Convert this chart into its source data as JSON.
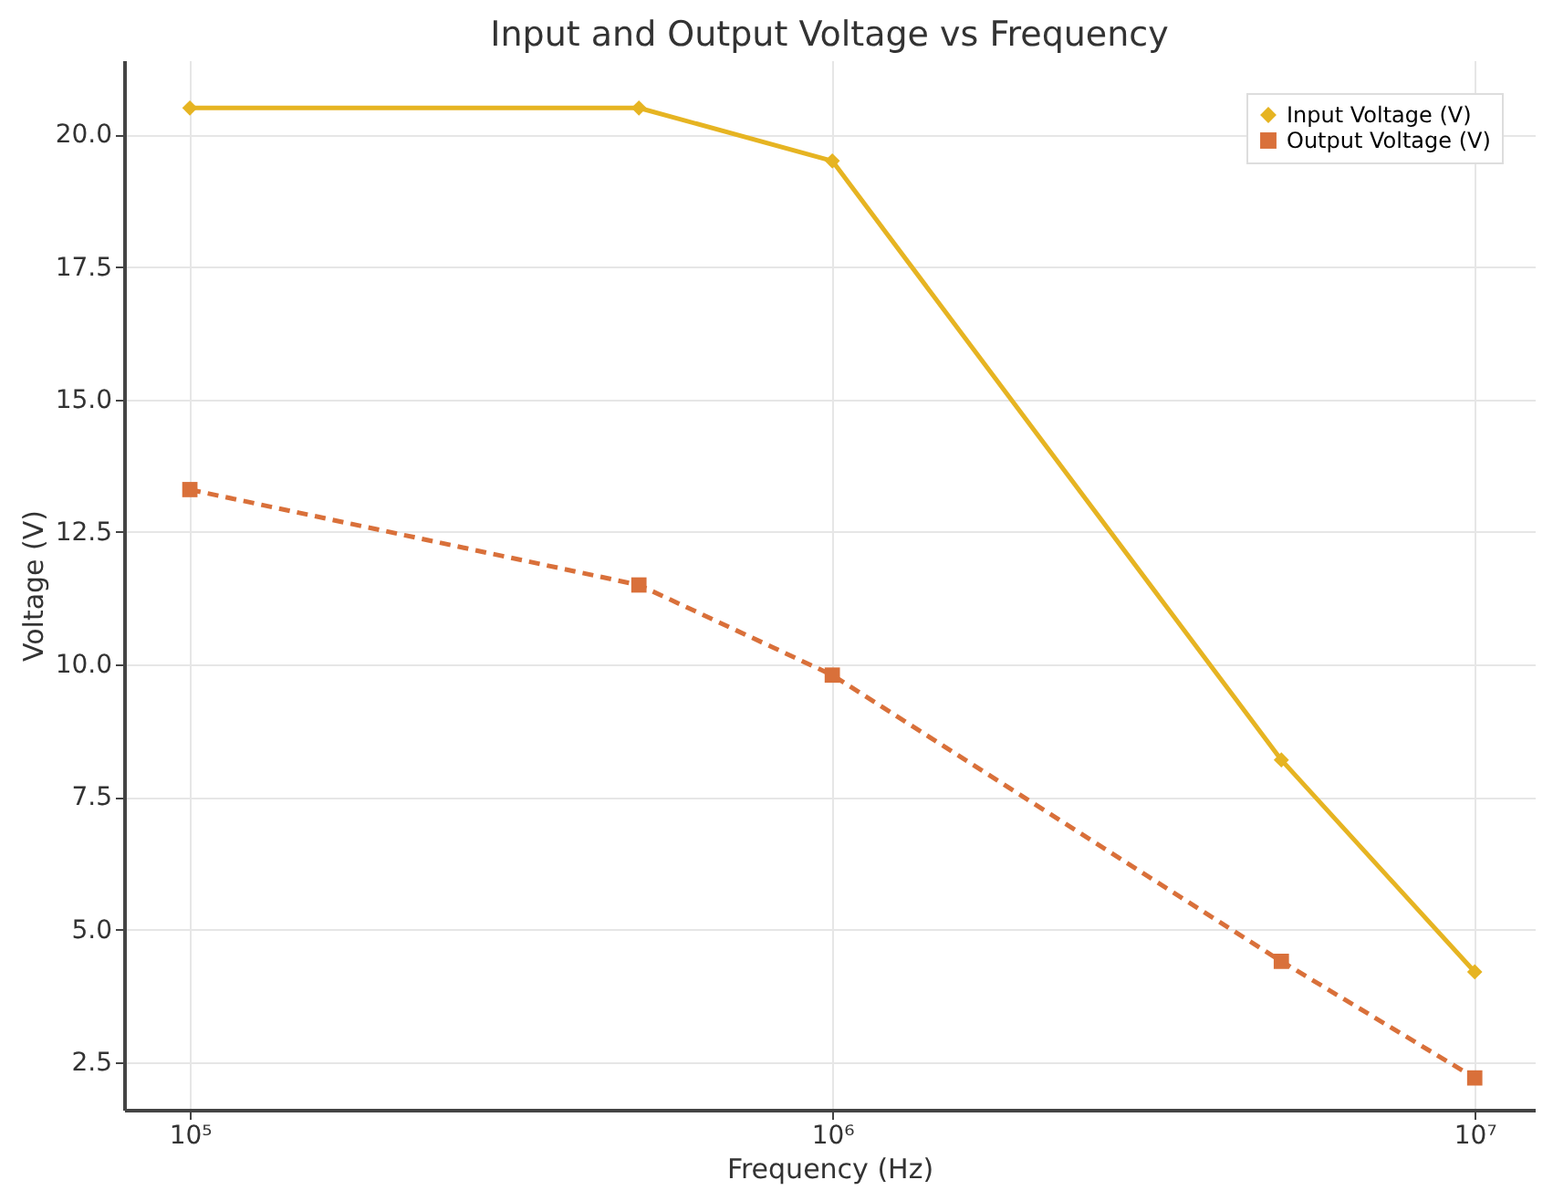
{
  "chart_data": {
    "type": "line",
    "title": "Input and Output Voltage vs Frequency",
    "xlabel": "Frequency (Hz)",
    "ylabel": "Voltage (V)",
    "x": [
      100000,
      500000,
      1000000,
      5000000,
      10000000
    ],
    "series": [
      {
        "name": "Input Voltage (V)",
        "color": "#e6b422",
        "marker": "diamond",
        "line_style": "solid",
        "values": [
          20.5,
          20.5,
          19.5,
          8.2,
          4.2
        ]
      },
      {
        "name": "Output Voltage (V)",
        "color": "#d9703a",
        "marker": "square",
        "line_style": "dashed",
        "values": [
          13.3,
          11.5,
          9.8,
          4.4,
          2.2
        ]
      }
    ],
    "log": "x",
    "xlim": [
      79000,
      12400000
    ],
    "xticks": [
      {
        "value": 100000,
        "label": "10⁵"
      },
      {
        "value": 1000000,
        "label": "10⁶"
      },
      {
        "value": 10000000,
        "label": "10⁷"
      }
    ],
    "ylim": [
      1.6,
      21.4
    ],
    "yticks": [
      {
        "value": 2.5,
        "label": "2.5"
      },
      {
        "value": 5,
        "label": "5.0"
      },
      {
        "value": 7.5,
        "label": "7.5"
      },
      {
        "value": 10,
        "label": "10.0"
      },
      {
        "value": 12.5,
        "label": "12.5"
      },
      {
        "value": 15,
        "label": "15.0"
      },
      {
        "value": 17.5,
        "label": "17.5"
      },
      {
        "value": 20,
        "label": "20.0"
      }
    ],
    "grid": true,
    "legend": "top right"
  }
}
